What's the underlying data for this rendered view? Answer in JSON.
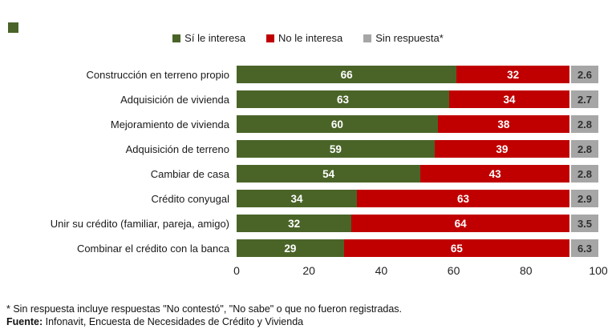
{
  "page": {
    "background": "#ffffff",
    "accent_green": "#4a6428"
  },
  "legend": {
    "items": [
      {
        "label": "Sí le interesa",
        "color": "#4a6428"
      },
      {
        "label": "No le interesa",
        "color": "#c00000"
      },
      {
        "label": "Sin respuesta*",
        "color": "#a6a6a6"
      }
    ]
  },
  "chart_data": {
    "type": "bar",
    "orientation": "horizontal",
    "stacked": true,
    "title": "",
    "xlabel": "",
    "ylabel": "",
    "xlim": [
      0,
      100
    ],
    "x_ticks": [
      0,
      20,
      40,
      60,
      80,
      100
    ],
    "grid": false,
    "legend_position": "top",
    "categories": [
      "Construcción en terreno propio",
      "Adquisición de vivienda",
      "Mejoramiento de vivienda",
      "Adquisición de terreno",
      "Cambiar de casa",
      "Crédito conyugal",
      "Unir su crédito (familiar, pareja, amigo)",
      "Combinar el crédito con la banca"
    ],
    "series": [
      {
        "name": "Sí le interesa",
        "color": "#4a6428",
        "values": [
          66,
          63,
          60,
          59,
          54,
          34,
          32,
          29
        ]
      },
      {
        "name": "No le interesa",
        "color": "#c00000",
        "values": [
          32,
          34,
          38,
          39,
          43,
          63,
          64,
          65
        ]
      },
      {
        "name": "Sin respuesta*",
        "color": "#a6a6a6",
        "values": [
          2.6,
          2.7,
          2.8,
          2.8,
          2.8,
          2.9,
          3.5,
          6.3
        ]
      }
    ]
  },
  "footnotes": {
    "line1": "* Sin respuesta incluye respuestas \"No contestó\", \"No sabe\" o que no fueron registradas.",
    "line2_bold": "Fuente:",
    "line2_rest": " Infonavit, Encuesta de Necesidades de Crédito y Vivienda"
  }
}
